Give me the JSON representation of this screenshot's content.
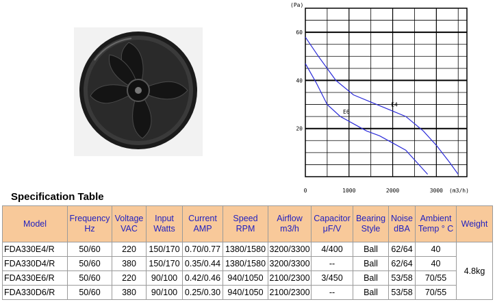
{
  "chart_data": {
    "type": "line",
    "title": "",
    "xlabel": "(m3/h)",
    "ylabel": "(Pa)",
    "xlim": [
      0,
      3700
    ],
    "ylim": [
      0,
      70
    ],
    "x_ticks": [
      "0",
      "1000",
      "2000",
      "3000"
    ],
    "y_ticks": [
      "20",
      "40",
      "60"
    ],
    "series": [
      {
        "name": "E4",
        "x": [
          0,
          300,
          700,
          1100,
          1500,
          1900,
          2300,
          2700,
          3000,
          3300,
          3500
        ],
        "y": [
          58,
          50,
          40,
          34,
          31,
          28,
          25,
          19,
          13,
          6,
          1
        ]
      },
      {
        "name": "E6",
        "x": [
          0,
          250,
          500,
          800,
          1100,
          1400,
          1700,
          2000,
          2300,
          2600,
          2800
        ],
        "y": [
          47,
          39,
          30,
          25,
          22,
          19,
          17,
          14,
          11,
          5,
          1
        ]
      }
    ],
    "grid": true,
    "legend": "none"
  },
  "spec": {
    "title": "Specification Table",
    "headers": [
      [
        "Model",
        ""
      ],
      [
        "Frequency",
        "Hz"
      ],
      [
        "Voltage",
        "VAC"
      ],
      [
        "Input",
        "Watts"
      ],
      [
        "Current",
        "AMP"
      ],
      [
        "Speed",
        "RPM"
      ],
      [
        "Airflow",
        "m3/h"
      ],
      [
        "Capacitor",
        "μF/V"
      ],
      [
        "Bearing",
        "Style"
      ],
      [
        "Noise",
        "dBA"
      ],
      [
        "Ambient",
        "Temp ° C"
      ],
      [
        "Weight",
        ""
      ]
    ],
    "rows": [
      [
        "FDA330E4/R",
        "50/60",
        "220",
        "150/170",
        "0.70/0.77",
        "1380/1580",
        "3200/3300",
        "4/400",
        "Ball",
        "62/64",
        "40"
      ],
      [
        "FDA330D4/R",
        "50/60",
        "380",
        "150/170",
        "0.35/0.44",
        "1380/1580",
        "3200/3300",
        "--",
        "Ball",
        "62/64",
        "40"
      ],
      [
        "FDA330E6/R",
        "50/60",
        "220",
        "90/100",
        "0.42/0.46",
        "940/1050",
        "2100/2300",
        "3/450",
        "Ball",
        "53/58",
        "70/55"
      ],
      [
        "FDA330D6/R",
        "50/60",
        "380",
        "90/100",
        "0.25/0.30",
        "940/1050",
        "2100/2300",
        "--",
        "Ball",
        "53/58",
        "70/55"
      ]
    ],
    "weight": "4.8kg"
  }
}
